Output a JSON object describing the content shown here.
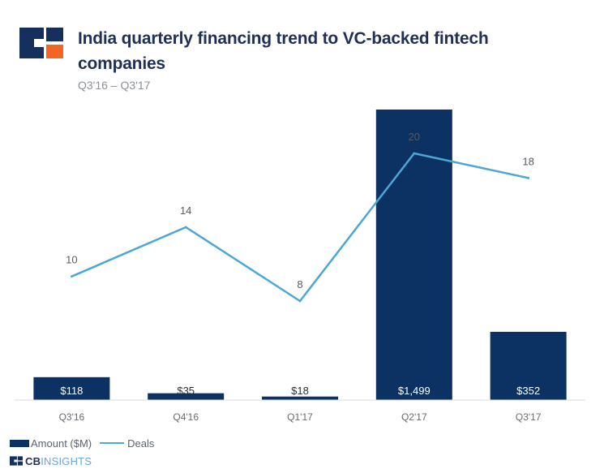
{
  "header": {
    "title": "India quarterly financing trend to VC-backed fintech companies",
    "subtitle": "Q3'16 – Q3'17"
  },
  "logo": {
    "icon": "cb-insights-logo-icon",
    "colors": {
      "navy": "#16305e",
      "orange": "#f26522"
    }
  },
  "legend": {
    "amount_label": "Amount ($M)",
    "deals_label": "Deals"
  },
  "footer": {
    "brand_cb": "CB",
    "brand_insights": "INSIGHTS",
    "icon": "cb-insights-small-logo-icon"
  },
  "colors": {
    "bar": "#0c3163",
    "line": "#4aa7d6",
    "axis": "#d8dbe0"
  },
  "chart_data": {
    "type": "bar",
    "title": "India quarterly financing trend to VC-backed fintech companies",
    "subtitle": "Q3'16 – Q3'17",
    "categories": [
      "Q3'16",
      "Q4'16",
      "Q1'17",
      "Q2'17",
      "Q3'17"
    ],
    "series": [
      {
        "name": "Amount ($M)",
        "type": "bar",
        "values": [
          118,
          35,
          18,
          1499,
          352
        ],
        "labels": [
          "$118",
          "$35",
          "$18",
          "$1,499",
          "$352"
        ]
      },
      {
        "name": "Deals",
        "type": "line",
        "values": [
          10,
          14,
          8,
          20,
          18
        ],
        "labels": [
          "10",
          "14",
          "8",
          "20",
          "18"
        ]
      }
    ],
    "legend": "bottom-left",
    "grid": false
  }
}
